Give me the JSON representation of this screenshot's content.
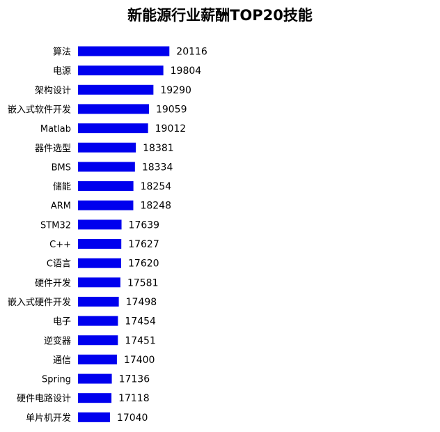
{
  "chart_data": {
    "type": "bar",
    "orientation": "horizontal",
    "title": "新能源行业薪酬TOP20技能",
    "xlabel": "",
    "ylabel": "",
    "bar_color": "#0000ee",
    "grid": false,
    "legend": "none",
    "categories": [
      "算法",
      "电源",
      "架构设计",
      "嵌入式软件开发",
      "Matlab",
      "器件选型",
      "BMS",
      "储能",
      "ARM",
      "STM32",
      "C++",
      "C语言",
      "硬件开发",
      "嵌入式硬件开发",
      "电子",
      "逆变器",
      "通信",
      "Spring",
      "硬件电路设计",
      "单片机开发"
    ],
    "values": [
      20116,
      19804,
      19290,
      19059,
      19012,
      18381,
      18334,
      18254,
      18248,
      17639,
      17627,
      17620,
      17581,
      17498,
      17454,
      17451,
      17400,
      17136,
      17118,
      17040
    ]
  }
}
